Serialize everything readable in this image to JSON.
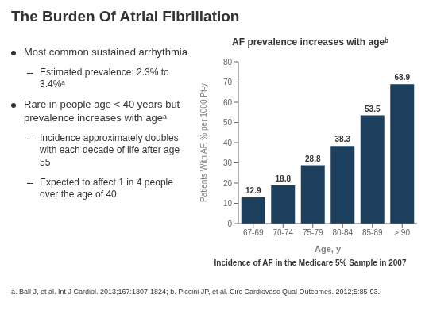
{
  "chart_data": {
    "type": "bar",
    "title": "The Burden Of Atrial Fibrillation",
    "subtitle": "AF prevalence increases with ageᵇ",
    "categories": [
      "67-69",
      "70-74",
      "75-79",
      "80-84",
      "85-89",
      "≥ 90"
    ],
    "values": [
      12.9,
      18.8,
      28.8,
      38.3,
      53.5,
      68.9
    ],
    "color": "#1C3F5E",
    "xlabel": "Age, y",
    "ylabel": "Patients With AF, % per 1000 Pt-y",
    "ylim": [
      0,
      80
    ],
    "yticks": [
      0,
      10,
      20,
      30,
      40,
      50,
      60,
      70,
      80
    ],
    "grid": false,
    "data_labels": true,
    "annotations": [
      "Most common sustained arrhythmia",
      "Estimated prevalence: 2.3% to 3.4%ᵃ",
      "Rare in people age < 40 years but prevalence increases with ageᵃ",
      "Incidence approximately doubles with each decade of life after age 55",
      "Expected to affect 1 in 4 people over the age of 40",
      "Incidence of AF in the Medicare 5% Sample in 2007",
      "a. Ball J, et al. Int J Cardiol. 2013;167:1807-1824; b. Piccini JP, et al. Circ Cardiovasc Qual Outcomes. 2012;5:85-93."
    ]
  }
}
